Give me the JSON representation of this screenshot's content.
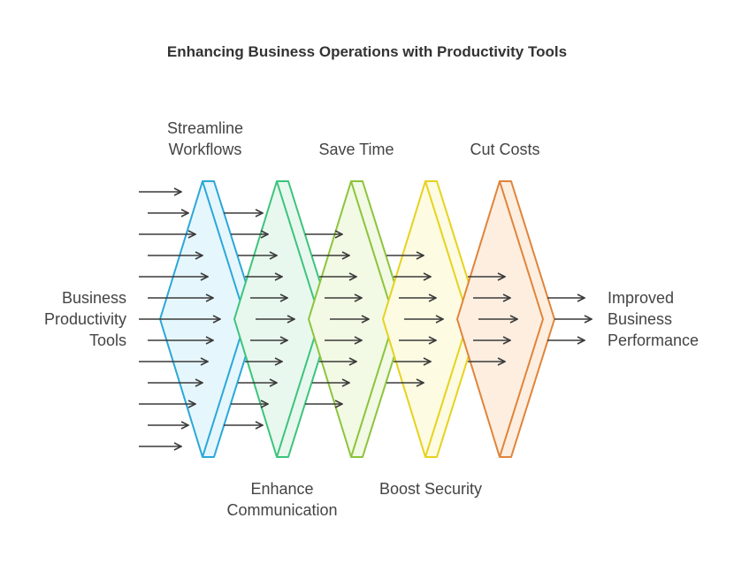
{
  "title": "Enhancing Business Operations with Productivity Tools",
  "input": {
    "line1": "Business",
    "line2": "Productivity",
    "line3": "Tools"
  },
  "output": {
    "line1": "Improved",
    "line2": "Business",
    "line3": "Performance"
  },
  "stages": [
    {
      "line1": "Streamline",
      "line2": "Workflows",
      "stroke": "#2aa8d8",
      "fill": "#e6f6fd"
    },
    {
      "line1": "Enhance",
      "line2": "Communication",
      "stroke": "#3cc47c",
      "fill": "#e8f8ee"
    },
    {
      "line1": "Save Time",
      "line2": "",
      "stroke": "#8cc43c",
      "fill": "#f2f9e4"
    },
    {
      "line1": "Boost Security",
      "line2": "",
      "stroke": "#e6d21e",
      "fill": "#fdfbe2"
    },
    {
      "line1": "Cut Costs",
      "line2": "",
      "stroke": "#e0843a",
      "fill": "#fdeee0"
    }
  ]
}
